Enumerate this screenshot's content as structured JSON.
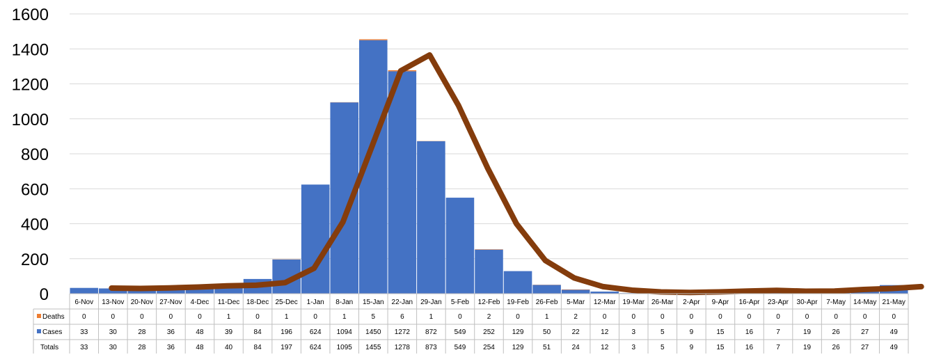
{
  "chart_data": {
    "type": "bar",
    "title": "",
    "xlabel": "",
    "ylabel": "",
    "ylim": [
      0,
      1600
    ],
    "y_ticks": [
      "0",
      "200",
      "400",
      "600",
      "800",
      "1000",
      "1200",
      "1400",
      "1600"
    ],
    "grid": true,
    "stacked": true,
    "categories": [
      "6-Nov",
      "13-Nov",
      "20-Nov",
      "27-Nov",
      "4-Dec",
      "11-Dec",
      "18-Dec",
      "25-Dec",
      "1-Jan",
      "8-Jan",
      "15-Jan",
      "22-Jan",
      "29-Jan",
      "5-Feb",
      "12-Feb",
      "19-Feb",
      "26-Feb",
      "5-Mar",
      "12-Mar",
      "19-Mar",
      "26-Mar",
      "2-Apr",
      "9-Apr",
      "16-Apr",
      "23-Apr",
      "30-Apr",
      "7-May",
      "14-May",
      "21-May"
    ],
    "series": [
      {
        "name": "Deaths",
        "color": "#ED7D31",
        "values": [
          0,
          0,
          0,
          0,
          0,
          1,
          0,
          1,
          0,
          1,
          5,
          6,
          1,
          0,
          2,
          0,
          1,
          2,
          0,
          0,
          0,
          0,
          0,
          0,
          0,
          0,
          0,
          0,
          0
        ]
      },
      {
        "name": "Cases",
        "color": "#4472C4",
        "values": [
          33,
          30,
          28,
          36,
          48,
          39,
          84,
          196,
          624,
          1094,
          1450,
          1272,
          872,
          549,
          252,
          129,
          50,
          22,
          12,
          3,
          5,
          9,
          15,
          16,
          7,
          19,
          26,
          27,
          49
        ]
      }
    ],
    "table_rows": [
      {
        "label": "Deaths",
        "values": [
          "0",
          "0",
          "0",
          "0",
          "0",
          "1",
          "0",
          "1",
          "0",
          "1",
          "5",
          "6",
          "1",
          "0",
          "2",
          "0",
          "1",
          "2",
          "0",
          "0",
          "0",
          "0",
          "0",
          "0",
          "0",
          "0",
          "0",
          "0",
          "0"
        ]
      },
      {
        "label": "Cases",
        "values": [
          "33",
          "30",
          "28",
          "36",
          "48",
          "39",
          "84",
          "196",
          "624",
          "1094",
          "1450",
          "1272",
          "872",
          "549",
          "252",
          "129",
          "50",
          "22",
          "12",
          "3",
          "5",
          "9",
          "15",
          "16",
          "7",
          "19",
          "26",
          "27",
          "49"
        ]
      },
      {
        "label": "Totals",
        "values": [
          "33",
          "30",
          "28",
          "36",
          "48",
          "40",
          "84",
          "197",
          "624",
          "1095",
          "1455",
          "1278",
          "873",
          "549",
          "254",
          "129",
          "51",
          "24",
          "12",
          "3",
          "5",
          "9",
          "15",
          "16",
          "7",
          "19",
          "26",
          "27",
          "49"
        ]
      }
    ],
    "trend_line": {
      "color": "#843C0C",
      "x_start_index": 1,
      "values": [
        32,
        30,
        33,
        38,
        45,
        48,
        63,
        145,
        410,
        840,
        1275,
        1365,
        1075,
        720,
        400,
        190,
        90,
        40,
        20,
        10,
        7,
        10,
        15,
        19,
        14,
        15,
        24,
        30,
        40
      ]
    }
  }
}
